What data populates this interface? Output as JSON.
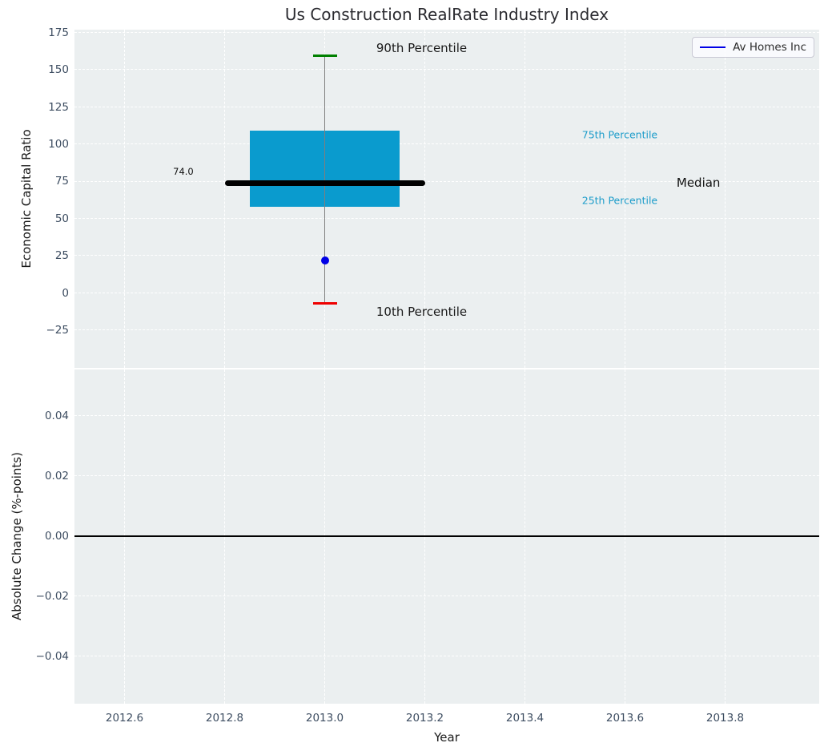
{
  "x_axis": {
    "label": "Year",
    "ticks": [
      {
        "v": 2012.6,
        "label": "2012.6"
      },
      {
        "v": 2012.8,
        "label": "2012.8"
      },
      {
        "v": 2013.0,
        "label": "2013.0"
      },
      {
        "v": 2013.2,
        "label": "2013.2"
      },
      {
        "v": 2013.4,
        "label": "2013.4"
      },
      {
        "v": 2013.6,
        "label": "2013.6"
      },
      {
        "v": 2013.8,
        "label": "2013.8"
      }
    ]
  },
  "colors": {
    "box_fill": "#0A9BCE",
    "median_line": "#000000",
    "whisker": "#7F7F7F",
    "cap_90": "#008000",
    "cap_10": "#EE0000",
    "point": "#0000E6",
    "legend_line": "#0000E6",
    "percentile_label": "#1C9CCA",
    "axes_bg": "#EBEFF0",
    "grid": "#FFFFFF",
    "tick_label": "#3D4D61",
    "zero_line": "#000000"
  },
  "chart_data": [
    {
      "type": "box",
      "title": "Us Construction RealRate Industry Index",
      "xlabel": "Year",
      "ylabel": "Economic Capital Ratio",
      "xlim": [
        2012.5,
        2013.988
      ],
      "ylim": [
        -50.3,
        177
      ],
      "grid": true,
      "yticks": [
        {
          "v": 175,
          "label": "175"
        },
        {
          "v": 150,
          "label": "150"
        },
        {
          "v": 125,
          "label": "125"
        },
        {
          "v": 100,
          "label": "100"
        },
        {
          "v": 75,
          "label": "75"
        },
        {
          "v": 50,
          "label": "50"
        },
        {
          "v": 25,
          "label": "25"
        },
        {
          "v": 0,
          "label": "0"
        },
        {
          "v": -25,
          "label": "−25"
        }
      ],
      "boxes": [
        {
          "x": 2013.0,
          "p10": -7,
          "p25": 58,
          "median": 74.0,
          "p75": 109,
          "p90": 159.6,
          "median_label": "74.0",
          "box_halfwidth": 0.15,
          "median_halfwidth": 0.2,
          "cap_halfwidth": 0.024
        }
      ],
      "points": [
        {
          "name": "Av Homes Inc",
          "x": 2013.0,
          "y": 22
        }
      ],
      "annotations": [
        {
          "text": "90th Percentile",
          "x": 2013.103,
          "y": 164.6,
          "color": "#1A1A1A",
          "size": 15,
          "align": "left"
        },
        {
          "text": "10th Percentile",
          "x": 2013.103,
          "y": -12.6,
          "color": "#1A1A1A",
          "size": 15,
          "align": "left"
        },
        {
          "text": "75th Percentile",
          "x": 2013.514,
          "y": 106.4,
          "color": "#1C9CCA",
          "size": 12.5,
          "align": "left"
        },
        {
          "text": "25th Percentile",
          "x": 2013.514,
          "y": 62.3,
          "color": "#1C9CCA",
          "size": 12.5,
          "align": "left"
        },
        {
          "text": "Median",
          "x": 2013.703,
          "y": 74.1,
          "color": "#111111",
          "size": 15,
          "align": "left"
        },
        {
          "text": "74.0",
          "x": 2012.738,
          "y": 81.7,
          "color": "#111111",
          "size": 11.5,
          "align": "right"
        }
      ],
      "legend": {
        "label": "Av Homes Inc",
        "position": "upper right"
      }
    },
    {
      "type": "line",
      "xlabel": "Year",
      "ylabel": "Absolute Change (%-points)",
      "xlim": [
        2012.5,
        2013.988
      ],
      "ylim": [
        -0.0558,
        0.0555
      ],
      "grid": true,
      "yticks": [
        {
          "v": 0.04,
          "label": "0.04"
        },
        {
          "v": 0.02,
          "label": "0.02"
        },
        {
          "v": 0.0,
          "label": "0.00"
        },
        {
          "v": -0.02,
          "label": "−0.02"
        },
        {
          "v": -0.04,
          "label": "−0.04"
        }
      ],
      "zero_line": 0.0,
      "series": []
    }
  ]
}
